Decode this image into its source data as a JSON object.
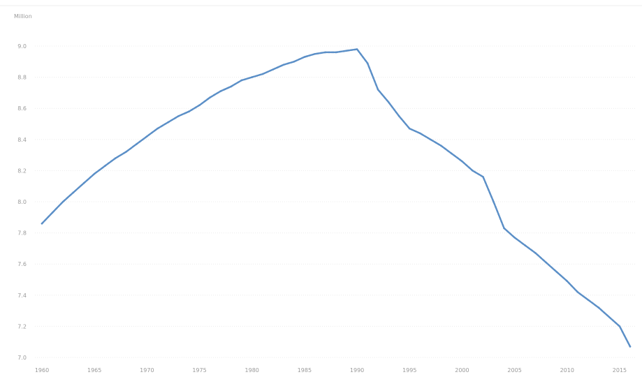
{
  "chart_data": {
    "type": "line",
    "unit_label": "Million",
    "ylim": [
      7.0,
      9.0
    ],
    "xlim": [
      1960,
      2016
    ],
    "y_ticks": [
      "9.0",
      "8.8",
      "8.6",
      "8.4",
      "8.2",
      "8.0",
      "7.8",
      "7.6",
      "7.4",
      "7.2",
      "7.0"
    ],
    "x_ticks": [
      "1960",
      "1965",
      "1970",
      "1975",
      "1980",
      "1985",
      "1990",
      "1995",
      "2000",
      "2005",
      "2010",
      "2015"
    ],
    "grid": true,
    "line_color": "#5b8fc7",
    "x": [
      1960,
      1961,
      1962,
      1963,
      1964,
      1965,
      1966,
      1967,
      1968,
      1969,
      1970,
      1971,
      1972,
      1973,
      1974,
      1975,
      1976,
      1977,
      1978,
      1979,
      1980,
      1981,
      1982,
      1983,
      1984,
      1985,
      1986,
      1987,
      1988,
      1989,
      1990,
      1991,
      1992,
      1993,
      1994,
      1995,
      1996,
      1997,
      1998,
      1999,
      2000,
      2001,
      2002,
      2003,
      2004,
      2005,
      2006,
      2007,
      2008,
      2009,
      2010,
      2011,
      2012,
      2013,
      2014,
      2015,
      2016
    ],
    "values": [
      7.86,
      7.93,
      8.0,
      8.06,
      8.12,
      8.18,
      8.23,
      8.28,
      8.32,
      8.37,
      8.42,
      8.47,
      8.51,
      8.55,
      8.58,
      8.62,
      8.67,
      8.71,
      8.74,
      8.78,
      8.8,
      8.82,
      8.85,
      8.88,
      8.9,
      8.93,
      8.95,
      8.96,
      8.96,
      8.97,
      8.98,
      8.89,
      8.72,
      8.64,
      8.55,
      8.47,
      8.44,
      8.4,
      8.36,
      8.31,
      8.26,
      8.2,
      8.16,
      8.0,
      7.83,
      7.77,
      7.72,
      7.67,
      7.61,
      7.55,
      7.49,
      7.42,
      7.37,
      7.32,
      7.26,
      7.2,
      7.07
    ]
  }
}
